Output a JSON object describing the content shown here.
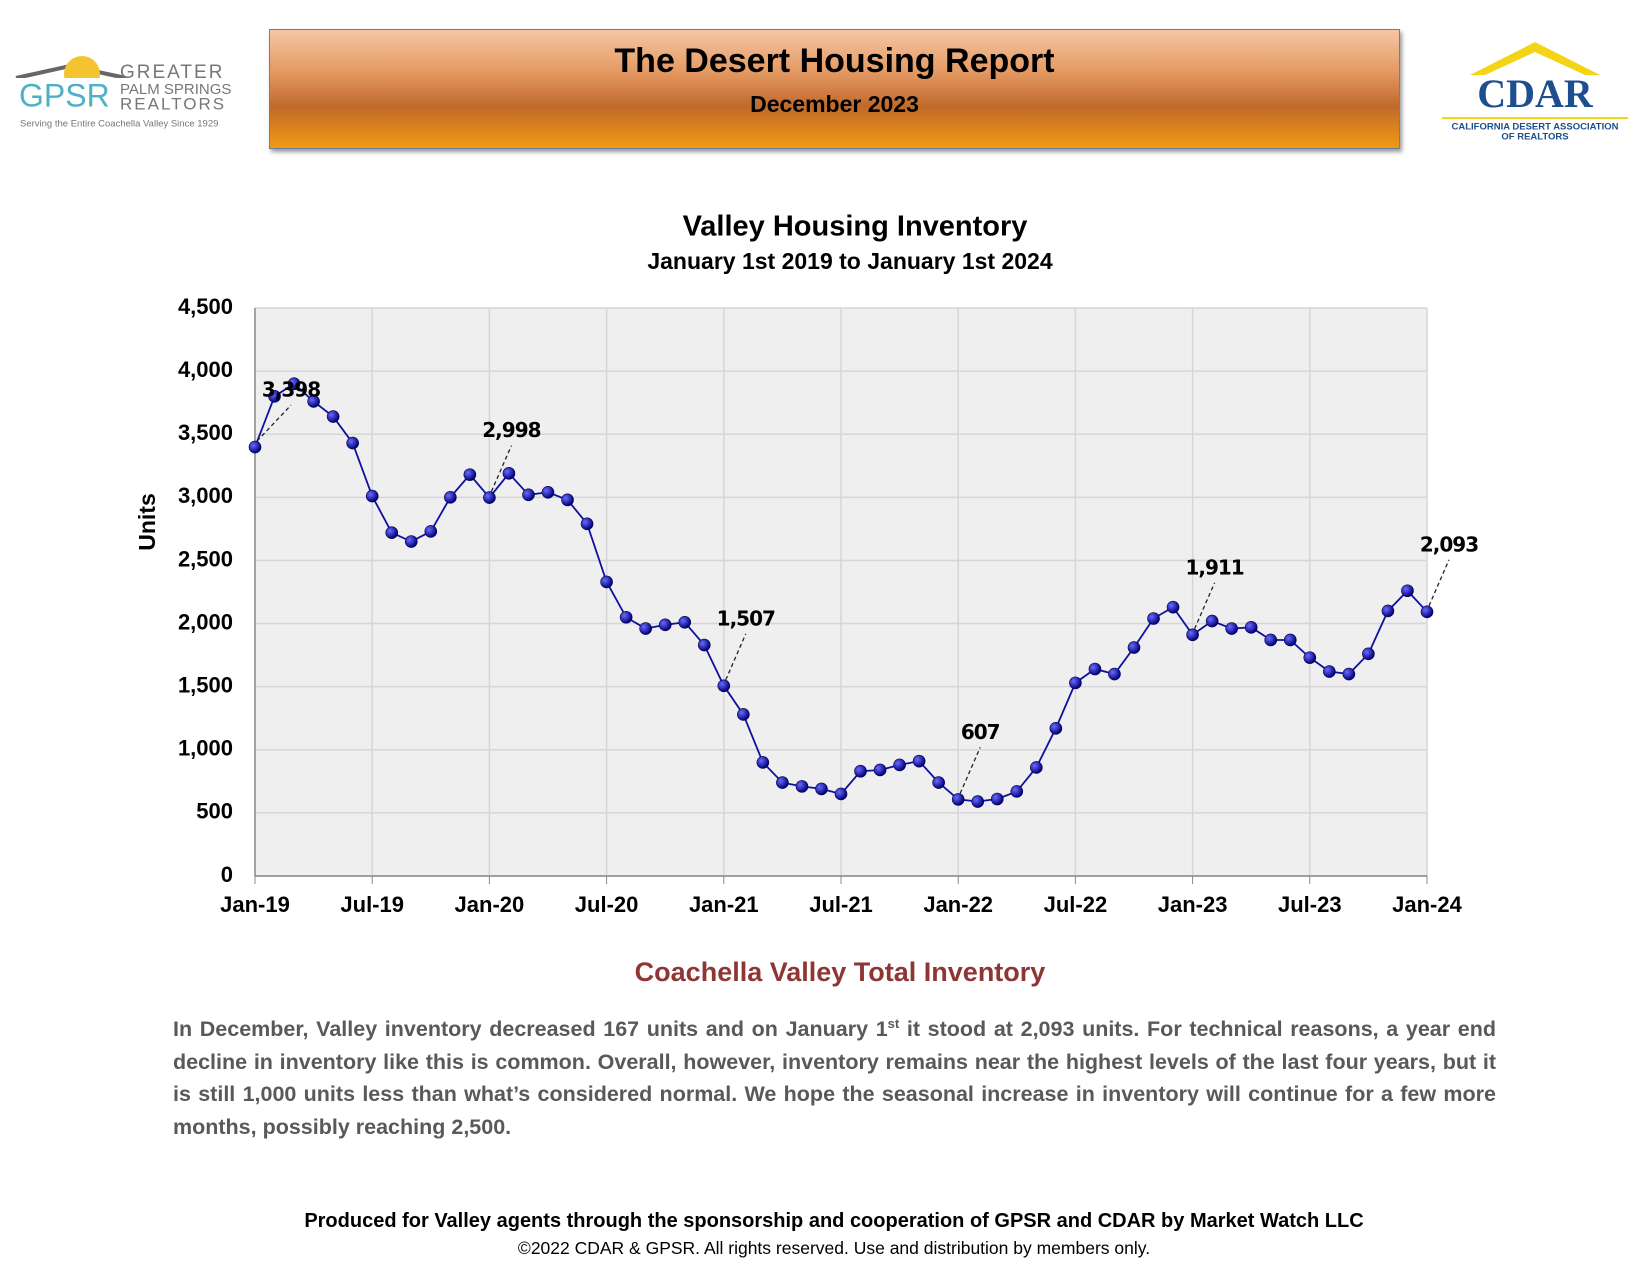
{
  "header": {
    "title": "The Desert Housing Report",
    "subtitle": "December 2023"
  },
  "logo_left": {
    "mark": "GPSR",
    "line1": "GREATER",
    "line2": "PALM SPRINGS",
    "line3": "REALTORS",
    "tagline": "Serving the Entire Coachella Valley Since 1929"
  },
  "logo_right": {
    "mark": "CDAR",
    "line1": "CALIFORNIA DESERT ASSOCIATION",
    "line2": "OF REALTORS"
  },
  "chart_data": {
    "type": "line",
    "title": "Valley Housing Inventory",
    "subtitle": "January 1st 2019 to January 1st 2024",
    "y_label": "Units",
    "categories": [
      "Jan-19",
      null,
      null,
      null,
      null,
      null,
      "Jul-19",
      null,
      null,
      null,
      null,
      null,
      "Jan-20",
      null,
      null,
      null,
      null,
      null,
      "Jul-20",
      null,
      null,
      null,
      null,
      null,
      "Jan-21",
      null,
      null,
      null,
      null,
      null,
      "Jul-21",
      null,
      null,
      null,
      null,
      null,
      "Jan-22",
      null,
      null,
      null,
      null,
      null,
      "Jul-22",
      null,
      null,
      null,
      null,
      null,
      "Jan-23",
      null,
      null,
      null,
      null,
      null,
      "Jul-23",
      null,
      null,
      null,
      null,
      null,
      "Jan-24"
    ],
    "values": [
      3398,
      3800,
      3900,
      3760,
      3640,
      3430,
      3010,
      2720,
      2650,
      2730,
      3000,
      3180,
      2998,
      3190,
      3020,
      3040,
      2980,
      2790,
      2330,
      2050,
      1960,
      1990,
      2010,
      1830,
      1507,
      1280,
      900,
      740,
      710,
      690,
      650,
      830,
      840,
      880,
      910,
      740,
      607,
      590,
      610,
      670,
      860,
      1170,
      1530,
      1640,
      1600,
      1810,
      2040,
      2130,
      1911,
      2020,
      1960,
      1970,
      1870,
      1870,
      1730,
      1620,
      1600,
      1760,
      2100,
      2260,
      2093
    ],
    "value_labels": [
      "3,398",
      null,
      null,
      null,
      null,
      null,
      null,
      null,
      null,
      null,
      null,
      null,
      "2,998",
      null,
      null,
      null,
      null,
      null,
      null,
      null,
      null,
      null,
      null,
      null,
      "1,507",
      null,
      null,
      null,
      null,
      null,
      null,
      null,
      null,
      null,
      null,
      null,
      "607",
      null,
      null,
      null,
      null,
      null,
      null,
      null,
      null,
      null,
      null,
      null,
      "1,911",
      null,
      null,
      null,
      null,
      null,
      null,
      null,
      null,
      null,
      null,
      null,
      "2,093"
    ],
    "color": "#1010a0",
    "ylim": [
      0,
      4500
    ],
    "yticks": [
      0,
      500,
      {
        "value": 1000,
        "label": "1,000"
      },
      {
        "value": 1500,
        "label": "1,500"
      },
      {
        "value": 2000,
        "label": "2,000"
      },
      {
        "value": 2500,
        "label": "2,500"
      },
      {
        "value": 3000,
        "label": "3,000"
      },
      {
        "value": 3500,
        "label": "3,500"
      },
      {
        "value": 4000,
        "label": "4,000"
      },
      {
        "value": 4500,
        "label": "4,500"
      }
    ],
    "grid": true
  },
  "body": {
    "heading": "Coachella Valley Total Inventory",
    "paragraph": [
      "In December, Valley inventory decreased 167 units and on January 1",
      "st",
      " it stood at 2,093 units. For technical reasons, a year end decline in inventory like this is common. Overall, however, inventory remains near the highest levels of the last four years, but it is still 1,000 units less than what’s considered normal. We hope the seasonal increase in inventory will continue for a few more months, possibly reaching 2,500."
    ]
  },
  "footer": {
    "line1": "Produced for Valley agents through the sponsorship and cooperation of GPSR and CDAR by Market Watch LLC",
    "line2": "©2022 CDAR & GPSR.  All rights reserved.  Use and distribution by members only."
  }
}
